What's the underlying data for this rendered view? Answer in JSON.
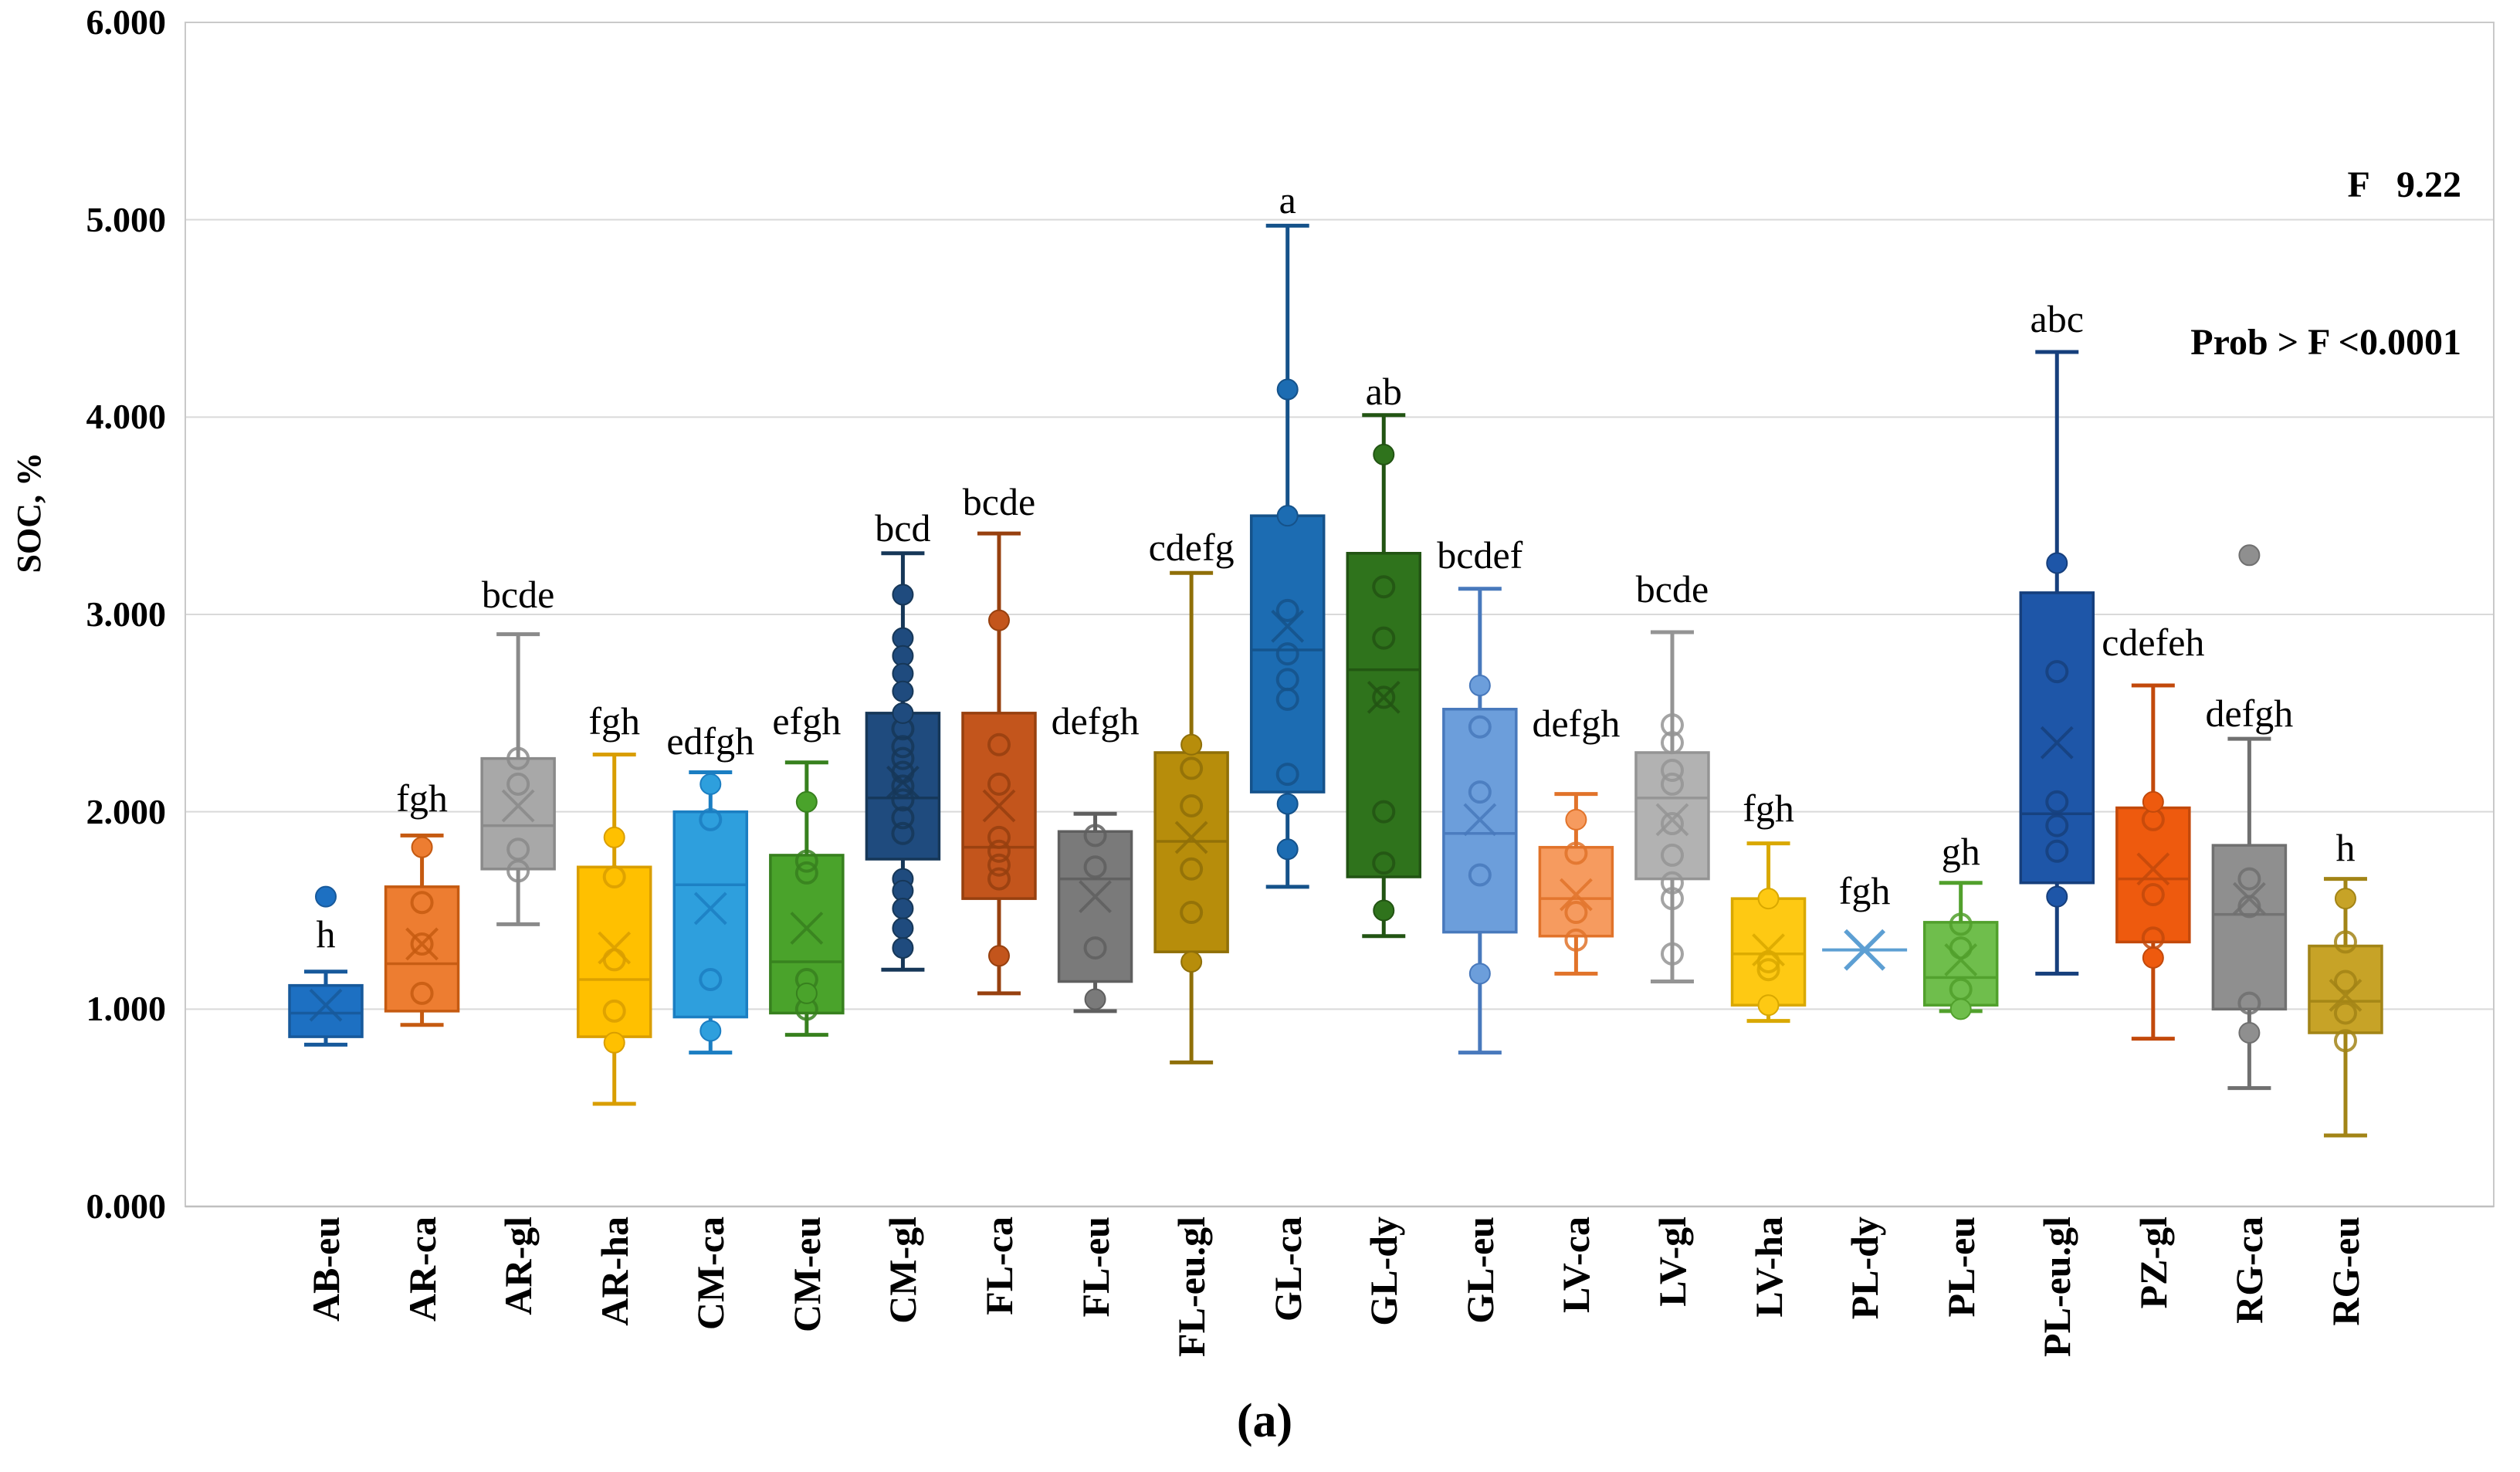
{
  "chart_data": {
    "type": "box",
    "title": "",
    "xlabel": "",
    "ylabel": "SOC, %",
    "ylim": [
      0,
      6
    ],
    "grid": true,
    "legend": "none",
    "caption": "(a)",
    "annotations": {
      "line1": "F   9.22",
      "line2": "Prob > F <0.0001"
    },
    "y_ticks": [
      "0.000",
      "1.000",
      "2.000",
      "3.000",
      "4.000",
      "5.000",
      "6.000"
    ],
    "categories": [
      "AB-eu",
      "AR-ca",
      "AR-gl",
      "AR-ha",
      "CM-ca",
      "CM-eu",
      "CM-gl",
      "FL-ca",
      "FL-eu",
      "FL-eu.gl",
      "GL-ca",
      "GL-dy",
      "GL-eu",
      "LV-ca",
      "LV-gl",
      "LV-ha",
      "PL-dy",
      "PL-eu",
      "PL-eu.gl",
      "PZ-gl",
      "RG-ca",
      "RG-eu"
    ],
    "series": [
      {
        "label": "AB-eu",
        "letter": "h",
        "letter_v": 1.38,
        "fill": "#1D70C2",
        "stroke": "#17599B",
        "low": 0.82,
        "q1": 0.86,
        "median": 0.98,
        "q3": 1.12,
        "high": 1.19,
        "mean": 1.02,
        "points_open": [],
        "points_filled": [
          1.57
        ]
      },
      {
        "label": "AR-ca",
        "letter": "fgh",
        "letter_v": 2.07,
        "fill": "#ED7D31",
        "stroke": "#C55A11",
        "low": 0.92,
        "q1": 0.99,
        "median": 1.23,
        "q3": 1.62,
        "high": 1.88,
        "mean": 1.33,
        "points_open": [
          1.54,
          1.33,
          1.08
        ],
        "points_filled": [
          1.82
        ]
      },
      {
        "label": "AR-gl",
        "letter": "bcde",
        "letter_v": 3.1,
        "fill": "#A8A8A8",
        "stroke": "#8A8A8A",
        "low": 1.43,
        "q1": 1.71,
        "median": 1.93,
        "q3": 2.27,
        "high": 2.9,
        "mean": 2.03,
        "points_open": [
          2.27,
          2.14,
          1.81,
          1.7
        ],
        "points_filled": []
      },
      {
        "label": "AR-ha",
        "letter": "fgh",
        "letter_v": 2.46,
        "fill": "#FFC000",
        "stroke": "#D99E00",
        "low": 0.52,
        "q1": 0.86,
        "median": 1.15,
        "q3": 1.72,
        "high": 2.29,
        "mean": 1.31,
        "points_open": [
          1.67,
          1.25,
          0.99
        ],
        "points_filled": [
          1.87,
          0.83
        ]
      },
      {
        "label": "CM-ca",
        "letter": "edfgh",
        "letter_v": 2.36,
        "fill": "#2E9FDD",
        "stroke": "#1B7EC2",
        "low": 0.78,
        "q1": 0.96,
        "median": 1.63,
        "q3": 2.0,
        "high": 2.2,
        "mean": 1.51,
        "points_open": [
          1.96,
          1.15
        ],
        "points_filled": [
          2.14,
          0.89
        ]
      },
      {
        "label": "CM-eu",
        "letter": "efgh",
        "letter_v": 2.46,
        "fill": "#4AA32B",
        "stroke": "#37801E",
        "low": 0.87,
        "q1": 0.98,
        "median": 1.24,
        "q3": 1.78,
        "high": 2.25,
        "mean": 1.41,
        "points_open": [
          1.75,
          1.69,
          1.15,
          1.0
        ],
        "points_filled": [
          2.05,
          1.08
        ]
      },
      {
        "label": "CM-gl",
        "letter": "bcd",
        "letter_v": 3.44,
        "fill": "#1F4B7E",
        "stroke": "#163758",
        "low": 1.2,
        "q1": 1.76,
        "median": 2.07,
        "q3": 2.5,
        "high": 3.31,
        "mean": 2.15,
        "points_open": [
          2.42,
          2.33,
          2.27,
          2.2,
          2.13,
          2.06,
          1.97,
          1.89
        ],
        "points_filled": [
          3.1,
          2.88,
          2.79,
          2.7,
          2.61,
          2.5,
          1.66,
          1.6,
          1.51,
          1.41,
          1.31
        ]
      },
      {
        "label": "FL-ca",
        "letter": "bcde",
        "letter_v": 3.57,
        "fill": "#C3551C",
        "stroke": "#97400F",
        "low": 1.08,
        "q1": 1.56,
        "median": 1.82,
        "q3": 2.5,
        "high": 3.41,
        "mean": 2.03,
        "points_open": [
          2.34,
          2.14,
          1.87,
          1.8,
          1.73,
          1.66
        ],
        "points_filled": [
          2.97,
          1.27
        ]
      },
      {
        "label": "FL-eu",
        "letter": "defgh",
        "letter_v": 2.46,
        "fill": "#7A7A7A",
        "stroke": "#5F5F5F",
        "low": 0.99,
        "q1": 1.14,
        "median": 1.66,
        "q3": 1.9,
        "high": 1.99,
        "mean": 1.57,
        "points_open": [
          1.88,
          1.72,
          1.31
        ],
        "points_filled": [
          1.05
        ]
      },
      {
        "label": "FL-eu.gl",
        "letter": "cdefg",
        "letter_v": 3.34,
        "fill": "#B78D0B",
        "stroke": "#8F6F08",
        "low": 0.73,
        "q1": 1.29,
        "median": 1.85,
        "q3": 2.3,
        "high": 3.21,
        "mean": 1.87,
        "points_open": [
          2.22,
          2.03,
          1.71,
          1.49
        ],
        "points_filled": [
          2.34,
          1.24
        ]
      },
      {
        "label": "GL-ca",
        "letter": "a",
        "letter_v": 5.1,
        "fill": "#1C6CB2",
        "stroke": "#15528A",
        "low": 1.62,
        "q1": 2.1,
        "median": 2.82,
        "q3": 3.5,
        "high": 4.97,
        "mean": 2.94,
        "points_open": [
          3.02,
          2.8,
          2.67,
          2.57,
          2.19
        ],
        "points_filled": [
          4.14,
          3.5,
          2.04,
          1.81
        ]
      },
      {
        "label": "GL-dy",
        "letter": "ab",
        "letter_v": 4.13,
        "fill": "#2F731C",
        "stroke": "#225413",
        "low": 1.37,
        "q1": 1.67,
        "median": 2.72,
        "q3": 3.31,
        "high": 4.01,
        "mean": 2.58,
        "points_open": [
          3.14,
          2.88,
          2.58,
          2.0,
          1.74
        ],
        "points_filled": [
          3.81,
          1.5
        ]
      },
      {
        "label": "GL-eu",
        "letter": "bcdef",
        "letter_v": 3.3,
        "fill": "#6C9EDB",
        "stroke": "#4879BC",
        "low": 0.78,
        "q1": 1.39,
        "median": 1.89,
        "q3": 2.52,
        "high": 3.13,
        "mean": 1.96,
        "points_open": [
          2.43,
          2.1,
          1.68
        ],
        "points_filled": [
          2.64,
          1.18
        ]
      },
      {
        "label": "LV-ca",
        "letter": "defgh",
        "letter_v": 2.45,
        "fill": "#F69B5F",
        "stroke": "#E1732A",
        "low": 1.18,
        "q1": 1.37,
        "median": 1.56,
        "q3": 1.82,
        "high": 2.09,
        "mean": 1.58,
        "points_open": [
          1.79,
          1.49,
          1.35
        ],
        "points_filled": [
          1.96
        ]
      },
      {
        "label": "LV-gl",
        "letter": "bcde",
        "letter_v": 3.13,
        "fill": "#B2B2B2",
        "stroke": "#949494",
        "low": 1.14,
        "q1": 1.66,
        "median": 2.07,
        "q3": 2.3,
        "high": 2.91,
        "mean": 1.96,
        "points_open": [
          2.44,
          2.35,
          2.21,
          2.14,
          1.94,
          1.78,
          1.64,
          1.56,
          1.28
        ],
        "points_filled": []
      },
      {
        "label": "LV-ha",
        "letter": "fgh",
        "letter_v": 2.02,
        "fill": "#FEC913",
        "stroke": "#D9A800",
        "low": 0.94,
        "q1": 1.02,
        "median": 1.28,
        "q3": 1.56,
        "high": 1.84,
        "mean": 1.3,
        "points_open": [
          1.24,
          1.2
        ],
        "points_filled": [
          1.56,
          1.02
        ]
      },
      {
        "label": "PL-dy",
        "letter": "fgh",
        "letter_v": 1.6,
        "fill": "#5D9FD3",
        "stroke": "#5D9FD3",
        "single_value": 1.3,
        "mean": 1.3,
        "points_open": [],
        "points_filled": []
      },
      {
        "label": "PL-eu",
        "letter": "gh",
        "letter_v": 1.8,
        "fill": "#6FBE4C",
        "stroke": "#51A02C",
        "low": 0.99,
        "q1": 1.02,
        "median": 1.16,
        "q3": 1.44,
        "high": 1.64,
        "mean": 1.25,
        "points_open": [
          1.43,
          1.31,
          1.1
        ],
        "points_filled": [
          1.0
        ]
      },
      {
        "label": "PL-eu.gl",
        "letter": "abc",
        "letter_v": 4.5,
        "fill": "#1E56A8",
        "stroke": "#163F7C",
        "low": 1.18,
        "q1": 1.64,
        "median": 1.99,
        "q3": 3.11,
        "high": 4.33,
        "mean": 2.35,
        "points_open": [
          2.71,
          2.05,
          1.93,
          1.8
        ],
        "points_filled": [
          3.26,
          1.57
        ]
      },
      {
        "label": "PZ-gl",
        "letter": "cdefeh",
        "letter_v": 2.86,
        "fill": "#EE5A0E",
        "stroke": "#C2490B",
        "low": 0.85,
        "q1": 1.34,
        "median": 1.66,
        "q3": 2.02,
        "high": 2.64,
        "mean": 1.71,
        "points_open": [
          1.96,
          1.58,
          1.36
        ],
        "points_filled": [
          2.05,
          1.26
        ]
      },
      {
        "label": "RG-ca",
        "letter": "defgh",
        "letter_v": 2.5,
        "fill": "#8F8F8F",
        "stroke": "#707070",
        "low": 0.6,
        "q1": 1.0,
        "median": 1.48,
        "q3": 1.83,
        "high": 2.37,
        "mean": 1.56,
        "points_open": [
          1.66,
          1.52,
          1.03
        ],
        "points_filled": [
          3.3,
          0.88
        ]
      },
      {
        "label": "RG-eu",
        "letter": "h",
        "letter_v": 1.82,
        "fill": "#C7A327",
        "stroke": "#A28416",
        "low": 0.36,
        "q1": 0.88,
        "median": 1.04,
        "q3": 1.32,
        "high": 1.66,
        "mean": 1.07,
        "points_open": [
          1.34,
          1.14,
          0.98,
          0.84
        ],
        "points_filled": [
          1.56
        ]
      }
    ],
    "colors": {
      "gridline": "#D9D9D9",
      "plot_border": "#C9C9C9",
      "axis_line": "#BFBFBF",
      "text": "#000000"
    }
  }
}
